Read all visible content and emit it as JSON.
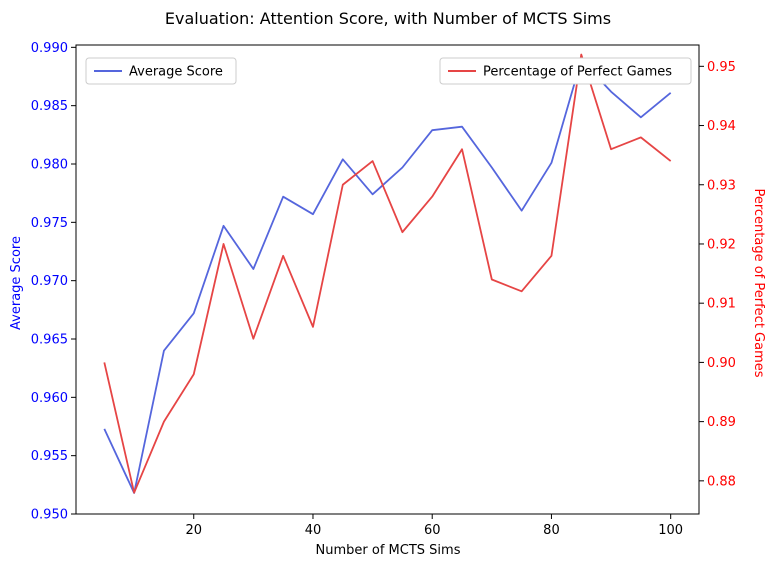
{
  "chart_data": {
    "type": "line",
    "title": "Evaluation: Attention Score, with Number of MCTS Sims",
    "xlabel": "Number of MCTS Sims",
    "ylabel_left": "Average Score",
    "ylabel_right": "Percentage of Perfect Games",
    "x": [
      5,
      10,
      15,
      20,
      25,
      30,
      35,
      40,
      45,
      50,
      55,
      60,
      65,
      70,
      75,
      80,
      85,
      90,
      95,
      100
    ],
    "xlim": [
      0.25,
      104.75
    ],
    "xticks": [
      "20",
      "40",
      "60",
      "80",
      "100"
    ],
    "ylim_left": [
      0.95,
      0.9902
    ],
    "yticks_left": [
      "0.950",
      "0.955",
      "0.960",
      "0.965",
      "0.970",
      "0.975",
      "0.980",
      "0.985",
      "0.990"
    ],
    "ylim_right": [
      0.8744,
      0.9536
    ],
    "yticks_right": [
      "0.88",
      "0.89",
      "0.90",
      "0.91",
      "0.92",
      "0.93",
      "0.94",
      "0.95"
    ],
    "series": [
      {
        "name": "Average Score",
        "axis": "left",
        "color": "#5566dd",
        "values": [
          0.9573,
          0.9518,
          0.964,
          0.9672,
          0.9747,
          0.971,
          0.9772,
          0.9757,
          0.9804,
          0.9774,
          0.9797,
          0.9829,
          0.9832,
          0.9797,
          0.976,
          0.9801,
          0.9889,
          0.9862,
          0.984,
          0.9861
        ]
      },
      {
        "name": "Percentage of Perfect Games",
        "axis": "right",
        "color": "#e64545",
        "values": [
          0.9,
          0.878,
          0.89,
          0.898,
          0.92,
          0.904,
          0.918,
          0.906,
          0.93,
          0.934,
          0.922,
          0.928,
          0.936,
          0.914,
          0.912,
          0.918,
          0.952,
          0.936,
          0.938,
          0.934
        ]
      }
    ],
    "legends": {
      "left": {
        "placement": "upper-left",
        "labels": [
          "Average Score"
        ]
      },
      "right": {
        "placement": "upper-right",
        "labels": [
          "Percentage of Perfect Games"
        ]
      }
    },
    "axis_colors": {
      "left": "#0000ff",
      "right": "#ff0000"
    },
    "grid": false
  }
}
